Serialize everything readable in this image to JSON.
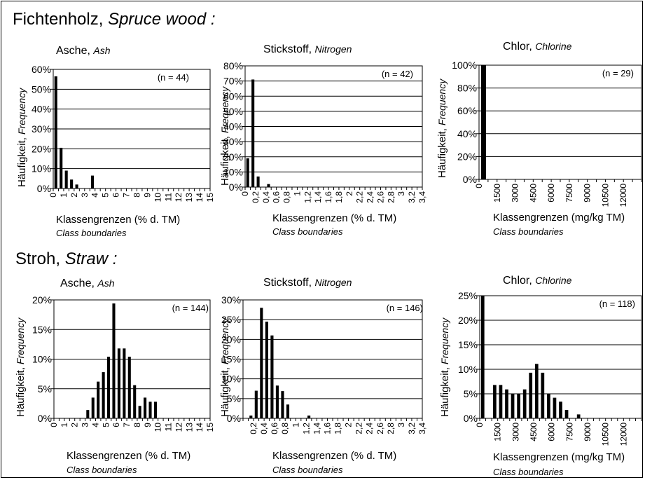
{
  "sections": [
    {
      "title_de": "Fichtenholz,",
      "title_en": "Spruce wood :"
    },
    {
      "title_de": "Stroh,",
      "title_en": "Straw :"
    }
  ],
  "common": {
    "ylabel_de": "Häufigkeit,",
    "ylabel_en": "Frequency",
    "xlabel_en": "Class boundaries"
  },
  "chart_data": [
    {
      "type": "bar",
      "title_de": "Asche,",
      "title_en": "Ash",
      "n_label": "(n = 44)",
      "xlabel_de": "Klassengrenzen (% d. TM)",
      "x_ticks": [
        "0",
        "0,5",
        "1",
        "1,5",
        "2",
        "2,5",
        "3",
        "3,5",
        "4",
        "4,5",
        "5",
        "5,5",
        "6",
        "6,5",
        "7",
        "7,5",
        "8",
        "8,5",
        "9",
        "9,5",
        "10",
        "10,5",
        "11",
        "11,5",
        "12",
        "12,5",
        "13",
        "13,5",
        "14",
        "14,5",
        "15"
      ],
      "x_tick_labels_shown": [
        "0",
        "1",
        "2",
        "3",
        "4",
        "5",
        "6",
        "7",
        "8",
        "9",
        "10",
        "11",
        "12",
        "13",
        "14",
        "15"
      ],
      "x_tick_label_every": 2,
      "values": [
        56.5,
        20.5,
        9,
        4.5,
        2,
        0,
        0,
        6.5,
        0,
        0,
        0,
        0,
        0,
        0,
        0,
        0,
        0,
        0,
        0,
        0,
        0,
        0,
        0,
        0,
        0,
        0,
        0,
        0,
        0,
        0
      ],
      "ylim": [
        0,
        60
      ],
      "y_ticks": [
        0,
        10,
        20,
        30,
        40,
        50,
        60
      ],
      "y_tick_labels": [
        "0%",
        "10%",
        "20%",
        "30%",
        "40%",
        "50%",
        "60%"
      ],
      "grid": true
    },
    {
      "type": "bar",
      "title_de": "Stickstoff,",
      "title_en": "Nitrogen",
      "n_label": "(n = 42)",
      "xlabel_de": "Klassengrenzen (% d. TM)",
      "x_ticks": [
        "0",
        "0,1",
        "0,2",
        "0,3",
        "0,4",
        "0,5",
        "0,6",
        "0,7",
        "0,8",
        "0,9",
        "1",
        "1,1",
        "1,2",
        "1,3",
        "1,4",
        "1,5",
        "1,6",
        "1,7",
        "1,8",
        "1,9",
        "2",
        "2,1",
        "2,2",
        "2,3",
        "2,4",
        "2,5",
        "2,6",
        "2,7",
        "2,8",
        "2,9",
        "3",
        "3,1",
        "3,2",
        "3,3",
        "3,4"
      ],
      "x_tick_labels_shown": [
        "0",
        "0,2",
        "0,4",
        "0,6",
        "0,8",
        "1",
        "1,2",
        "1,4",
        "1,6",
        "1,8",
        "2",
        "2,2",
        "2,4",
        "2,6",
        "2,8",
        "3",
        "3,2",
        "3,4"
      ],
      "x_tick_label_every": 2,
      "values": [
        19,
        71,
        7,
        0,
        2,
        0,
        0,
        0,
        0,
        0,
        0,
        0,
        0,
        0,
        0,
        0,
        0,
        0,
        0,
        0,
        0,
        0,
        0,
        0,
        0,
        0,
        0,
        0,
        0,
        0,
        0,
        0,
        0,
        0
      ],
      "ylim": [
        0,
        80
      ],
      "y_ticks": [
        0,
        10,
        20,
        30,
        40,
        50,
        60,
        70,
        80
      ],
      "y_tick_labels": [
        "0%",
        "10%",
        "20%",
        "30%",
        "40%",
        "50%",
        "60%",
        "70%",
        "80%"
      ],
      "grid": true
    },
    {
      "type": "bar",
      "title_de": "Chlor,",
      "title_en": "Chlorine",
      "n_label": "(n = 29)",
      "xlabel_de": "Klassengrenzen (mg/kg TM)",
      "x_ticks": [
        "0",
        "750",
        "1500",
        "2250",
        "3000",
        "3750",
        "4500",
        "5250",
        "6000",
        "6750",
        "7500",
        "8250",
        "9000",
        "9750",
        "10500",
        "11250",
        "12000",
        "12750",
        "13500"
      ],
      "x_tick_labels_shown": [
        "0",
        "1500",
        "3000",
        "4500",
        "6000",
        "7500",
        "9000",
        "10500",
        "12000"
      ],
      "x_tick_label_every": 2,
      "values": [
        100,
        0,
        0,
        0,
        0,
        0,
        0,
        0,
        0,
        0,
        0,
        0,
        0,
        0,
        0,
        0,
        0,
        0
      ],
      "ylim": [
        0,
        100
      ],
      "y_ticks": [
        0,
        20,
        40,
        60,
        80,
        100
      ],
      "y_tick_labels": [
        "0%",
        "20%",
        "40%",
        "60%",
        "80%",
        "100%"
      ],
      "grid": true
    },
    {
      "type": "bar",
      "title_de": "Asche,",
      "title_en": "Ash",
      "n_label": "(n = 144)",
      "xlabel_de": "Klassengrenzen (% d. TM)",
      "x_ticks": [
        "0",
        "0,5",
        "1",
        "1,5",
        "2",
        "2,5",
        "3",
        "3,5",
        "4",
        "4,5",
        "5",
        "5,5",
        "6",
        "6,5",
        "7",
        "7,5",
        "8",
        "8,5",
        "9",
        "9,5",
        "10",
        "10,5",
        "11",
        "11,5",
        "12",
        "12,5",
        "13",
        "13,5",
        "14",
        "14,5",
        "15"
      ],
      "x_tick_labels_shown": [
        "0",
        "1",
        "2",
        "3",
        "4",
        "5",
        "6",
        "7",
        "8",
        "9",
        "10",
        "11",
        "12",
        "13",
        "14",
        "15"
      ],
      "x_tick_label_every": 2,
      "values": [
        0,
        0,
        0,
        0,
        0,
        0,
        1.4,
        3.5,
        6.2,
        7.8,
        10.4,
        19.4,
        11.8,
        11.8,
        10.4,
        5.6,
        2.1,
        3.5,
        2.8,
        2.8,
        0,
        0,
        0,
        0,
        0,
        0,
        0,
        0,
        0,
        0
      ],
      "ylim": [
        0,
        20
      ],
      "y_ticks": [
        0,
        5,
        10,
        15,
        20
      ],
      "y_tick_labels": [
        "0%",
        "5%",
        "10%",
        "15%",
        "20%"
      ],
      "grid": true
    },
    {
      "type": "bar",
      "title_de": "Stickstoff,",
      "title_en": "Nitrogen",
      "n_label": "(n = 146)",
      "xlabel_de": "Klassengrenzen (% d. TM)",
      "x_ticks": [
        "0",
        "0,1",
        "0,2",
        "0,3",
        "0,4",
        "0,5",
        "0,6",
        "0,7",
        "0,8",
        "0,9",
        "1",
        "1,1",
        "1,2",
        "1,3",
        "1,4",
        "1,5",
        "1,6",
        "1,7",
        "1,8",
        "1,9",
        "2",
        "2,1",
        "2,2",
        "2,3",
        "2,4",
        "2,5",
        "2,6",
        "2,7",
        "2,8",
        "2,9",
        "3",
        "3,1",
        "3,2",
        "3,3",
        "3,4"
      ],
      "x_tick_labels_shown": [
        "0,2",
        "0,4",
        "0,6",
        "0,8",
        "1",
        "1,2",
        "1,4",
        "1,6",
        "1,8",
        "2",
        "2,2",
        "2,4",
        "2,6",
        "2,8",
        "3",
        "3,2",
        "3,4"
      ],
      "x_tick_label_every": 2,
      "values": [
        0,
        0.7,
        7,
        28,
        24.5,
        21,
        8.3,
        6.9,
        3.5,
        0,
        0,
        0,
        0.7,
        0,
        0,
        0,
        0,
        0,
        0,
        0,
        0,
        0,
        0,
        0,
        0,
        0,
        0,
        0,
        0,
        0,
        0,
        0,
        0,
        0
      ],
      "ylim": [
        0,
        30
      ],
      "y_ticks": [
        0,
        5,
        10,
        15,
        20,
        25,
        30
      ],
      "y_tick_labels": [
        "0%",
        "5%",
        "10%",
        "15%",
        "20%",
        "25%",
        "30%"
      ],
      "grid": true
    },
    {
      "type": "bar",
      "title_de": "Chlor,",
      "title_en": "Chlorine",
      "n_label": "(n = 118)",
      "xlabel_de": "Klassengrenzen (mg/kg TM)",
      "x_ticks": [
        "0",
        "500",
        "1000",
        "1500",
        "2000",
        "2500",
        "3000",
        "3500",
        "4000",
        "4500",
        "5000",
        "5500",
        "6000",
        "6500",
        "7000",
        "7500",
        "8000",
        "8500",
        "9000",
        "9500",
        "10000",
        "10500",
        "11000",
        "11500",
        "12000",
        "12500",
        "13000",
        "13500"
      ],
      "x_tick_labels_shown": [
        "0",
        "1500",
        "3000",
        "4500",
        "6000",
        "7500",
        "9000",
        "10500",
        "12000"
      ],
      "x_tick_label_every": 3,
      "values": [
        25,
        0,
        6.8,
        6.8,
        5.9,
        5,
        5,
        5.9,
        9.3,
        11.1,
        9.3,
        5,
        4.2,
        3.4,
        1.7,
        0,
        0.8,
        0,
        0,
        0,
        0,
        0,
        0,
        0,
        0,
        0,
        0
      ],
      "ylim": [
        0,
        25
      ],
      "y_ticks": [
        0,
        5,
        10,
        15,
        20,
        25
      ],
      "y_tick_labels": [
        "0%",
        "5%",
        "10%",
        "15%",
        "20%",
        "25%"
      ],
      "grid": true
    }
  ]
}
